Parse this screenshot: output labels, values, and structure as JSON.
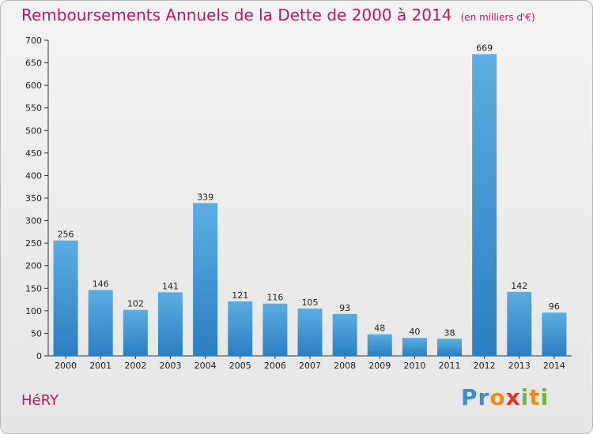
{
  "title": "Remboursements Annuels de la Dette de 2000 à 2014",
  "unit": "(en milliers d'€)",
  "commune": "HéRY",
  "logo": {
    "text": "Proxiti",
    "letters": [
      "P",
      "r",
      "o",
      "x",
      "i",
      "t",
      "i"
    ]
  },
  "colors": {
    "bar_light": "#5dade2",
    "bar_dark": "#2a7fc0",
    "title": "#c2185b",
    "logo": [
      "#3a8fd0",
      "#3a8fd0",
      "#f08a1c",
      "#e2342b",
      "#6bb83a",
      "#f08a1c",
      "#6bb83a"
    ]
  },
  "chart_data": {
    "type": "bar",
    "title": "Remboursements Annuels de la Dette de 2000 à 2014",
    "xlabel": "",
    "ylabel": "",
    "ylim": [
      0,
      700
    ],
    "yticks": [
      0,
      50,
      100,
      150,
      200,
      250,
      300,
      350,
      400,
      450,
      500,
      550,
      600,
      650,
      700
    ],
    "grid": false,
    "categories": [
      "2000",
      "2001",
      "2002",
      "2003",
      "2004",
      "2005",
      "2006",
      "2007",
      "2008",
      "2009",
      "2010",
      "2011",
      "2012",
      "2013",
      "2014"
    ],
    "values": [
      256,
      146,
      102,
      141,
      339,
      121,
      116,
      105,
      93,
      48,
      40,
      38,
      669,
      142,
      96
    ]
  }
}
